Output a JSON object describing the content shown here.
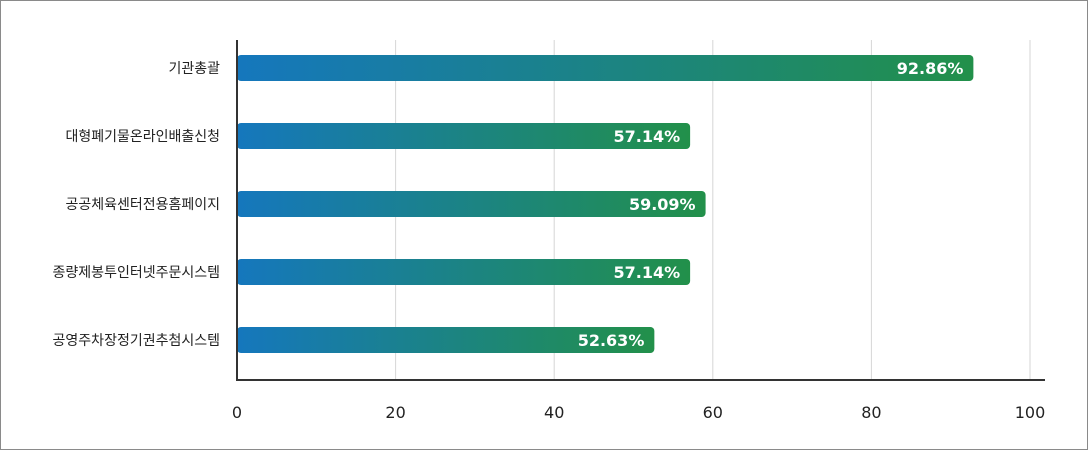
{
  "chart_data": {
    "type": "bar",
    "orientation": "horizontal",
    "categories": [
      "기관총괄",
      "대형폐기물온라인배출신청",
      "공공체육센터전용홈페이지",
      "종량제봉투인터넷주문시스템",
      "공영주차장정기권추첨시스템"
    ],
    "values": [
      92.86,
      57.14,
      59.09,
      57.14,
      52.63
    ],
    "value_labels": [
      "92.86%",
      "57.14%",
      "59.09%",
      "57.14%",
      "52.63%"
    ],
    "xlim": [
      0,
      100
    ],
    "xticks": [
      "0",
      "20",
      "40",
      "60",
      "80",
      "100"
    ],
    "grid": true,
    "colors": {
      "gradient_start": "#1577bd",
      "gradient_end": "#22904a"
    }
  }
}
